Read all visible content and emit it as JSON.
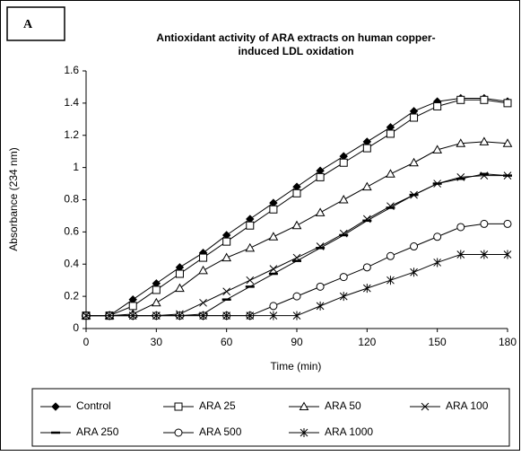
{
  "chart_data": {
    "type": "line",
    "label": "A",
    "title": [
      "Antioxidant activity of ARA extracts  on human copper-",
      "induced LDL oxidation"
    ],
    "xlabel": "Time (min)",
    "ylabel": "Absorbance (234 nm)",
    "x": [
      0,
      10,
      20,
      30,
      40,
      50,
      60,
      70,
      80,
      90,
      100,
      110,
      120,
      130,
      140,
      150,
      160,
      170,
      180
    ],
    "xlim": [
      0,
      180
    ],
    "xticks": [
      0,
      30,
      60,
      90,
      120,
      150,
      180
    ],
    "ylim": [
      0,
      1.6
    ],
    "yticks": [
      0,
      0.2,
      0.4,
      0.6,
      0.8,
      1,
      1.2,
      1.4,
      1.6
    ],
    "grid": false,
    "legend": "bottom",
    "series": [
      {
        "name": "Control",
        "color": "#000000",
        "marker": "diamond",
        "values": [
          0.08,
          0.08,
          0.18,
          0.28,
          0.38,
          0.47,
          0.58,
          0.68,
          0.78,
          0.88,
          0.98,
          1.07,
          1.16,
          1.25,
          1.35,
          1.41,
          1.43,
          1.43,
          1.41
        ]
      },
      {
        "name": "ARA 25",
        "color": "#000000",
        "marker": "square",
        "values": [
          0.08,
          0.08,
          0.14,
          0.24,
          0.34,
          0.44,
          0.54,
          0.64,
          0.74,
          0.84,
          0.94,
          1.03,
          1.12,
          1.21,
          1.31,
          1.38,
          1.42,
          1.42,
          1.4
        ]
      },
      {
        "name": "ARA 50",
        "color": "#000000",
        "marker": "triangle",
        "values": [
          0.08,
          0.08,
          0.09,
          0.16,
          0.25,
          0.36,
          0.44,
          0.5,
          0.57,
          0.64,
          0.72,
          0.8,
          0.88,
          0.96,
          1.03,
          1.11,
          1.15,
          1.16,
          1.15
        ]
      },
      {
        "name": "ARA 100",
        "color": "#000000",
        "marker": "x",
        "values": [
          0.08,
          0.08,
          0.08,
          0.08,
          0.09,
          0.16,
          0.23,
          0.3,
          0.37,
          0.44,
          0.51,
          0.59,
          0.68,
          0.76,
          0.83,
          0.9,
          0.94,
          0.95,
          0.95
        ]
      },
      {
        "name": "ARA 250",
        "color": "#000000",
        "marker": "dash",
        "values": [
          0.08,
          0.08,
          0.08,
          0.08,
          0.08,
          0.09,
          0.18,
          0.26,
          0.34,
          0.42,
          0.5,
          0.58,
          0.67,
          0.75,
          0.83,
          0.9,
          0.93,
          0.96,
          0.95
        ]
      },
      {
        "name": "ARA 500",
        "color": "#000000",
        "marker": "circle",
        "values": [
          0.08,
          0.08,
          0.08,
          0.08,
          0.08,
          0.08,
          0.08,
          0.08,
          0.14,
          0.2,
          0.26,
          0.32,
          0.38,
          0.45,
          0.51,
          0.57,
          0.63,
          0.65,
          0.65
        ]
      },
      {
        "name": "ARA 1000",
        "color": "#000000",
        "marker": "asterisk",
        "values": [
          0.08,
          0.08,
          0.08,
          0.08,
          0.08,
          0.08,
          0.08,
          0.08,
          0.08,
          0.08,
          0.14,
          0.2,
          0.25,
          0.3,
          0.35,
          0.41,
          0.46,
          0.46,
          0.46
        ]
      }
    ]
  }
}
